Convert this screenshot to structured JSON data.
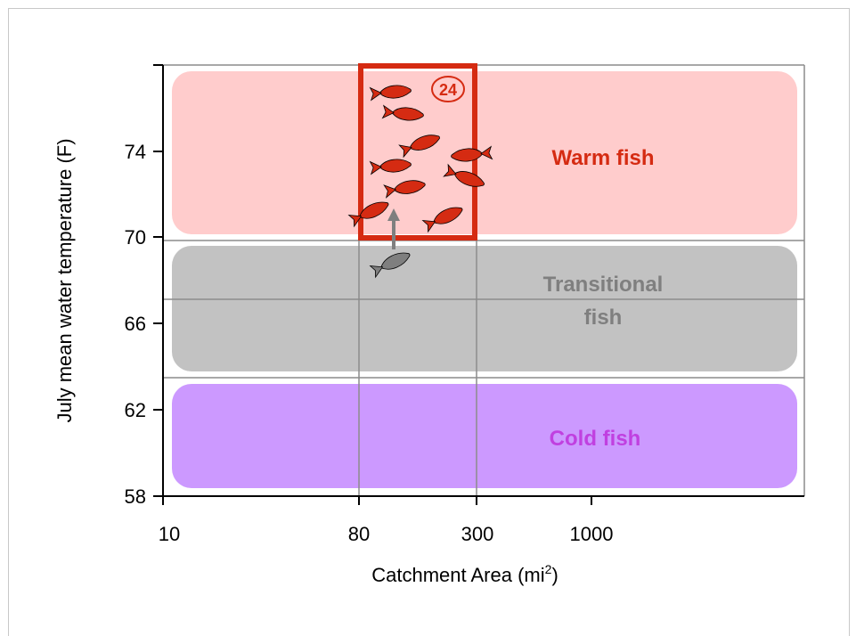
{
  "chart_data": {
    "type": "diagram",
    "xlabel": "Catchment Area (mi",
    "xlabel_sup": "2",
    "xlabel_end": ")",
    "ylabel": "July mean water temperature (F)",
    "x_ticks": [
      "10",
      "80",
      "300",
      "1000"
    ],
    "y_ticks": [
      "58",
      "62",
      "66",
      "70",
      "74"
    ],
    "x_scale": "log",
    "zones": [
      {
        "label": "Warm fish",
        "color": "#ffcccc",
        "text_color": "#d52b12"
      },
      {
        "label_line1": "Transitional",
        "label_line2": "fish",
        "color": "#c2c2c2",
        "text_color": "#7f7f7f"
      },
      {
        "label": "Cold fish",
        "color": "#cc99ff",
        "text_color": "#c040e0"
      }
    ],
    "highlight": {
      "label": "24",
      "x_range": [
        "80",
        "300"
      ],
      "y_min": "70",
      "color": "#d52b12"
    },
    "fish": {
      "warm_count": 10,
      "transitional_count": 1,
      "warm_color": "#d52b12",
      "transitional_color": "#7f7f7f"
    }
  }
}
